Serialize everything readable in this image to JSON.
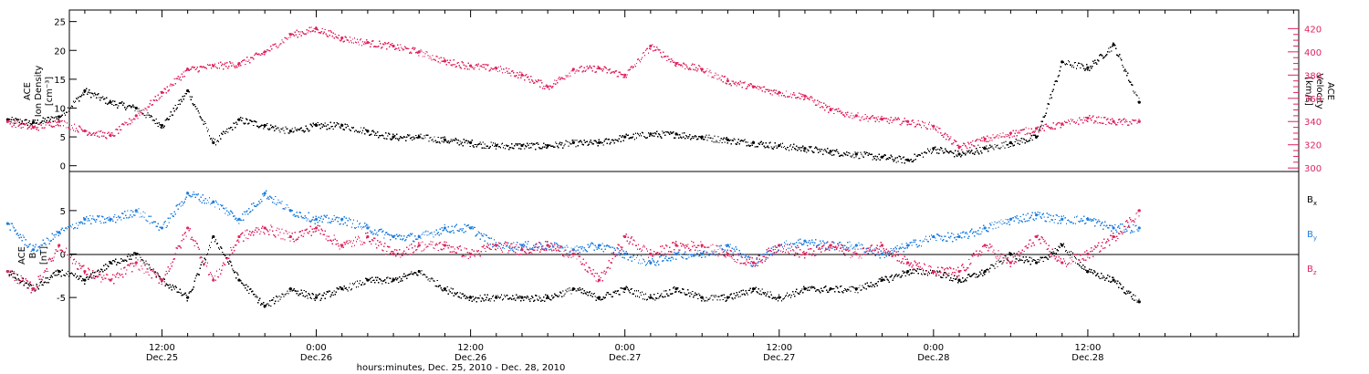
{
  "chart_data": [
    {
      "type": "scatter",
      "title": "",
      "xlabel": "hours:minutes, Dec. 25, 2010 - Dec. 28, 2010",
      "ylabel_left": [
        "ACE",
        "Ion Density",
        "[cm⁻³]"
      ],
      "ylabel_right": [
        "ACE",
        "Velocity",
        "[km/s]"
      ],
      "ylim_left": [
        -1,
        27
      ],
      "ylim_right": [
        297,
        436
      ],
      "left_ticks": [
        "0",
        "5",
        "10",
        "15",
        "20",
        "25"
      ],
      "right_ticks": [
        "300",
        "320",
        "340",
        "360",
        "380",
        "400",
        "420"
      ],
      "colors": {
        "density": "#000000",
        "velocity": "#e0245e"
      },
      "series": [
        {
          "name": "Ion Density",
          "axis": "left",
          "x_hours": [
            0,
            2,
            4,
            6,
            8,
            10,
            12,
            14,
            16,
            18,
            20,
            22,
            24,
            26,
            28,
            30,
            32,
            34,
            36,
            38,
            40,
            42,
            44,
            46,
            48,
            50,
            52,
            54,
            56,
            58,
            60,
            62,
            64,
            66,
            68,
            70,
            72,
            74,
            76,
            78,
            80,
            82,
            84,
            86,
            88
          ],
          "values": [
            8,
            7.5,
            8.5,
            13,
            11,
            10,
            7,
            13,
            4,
            8,
            7,
            6,
            7,
            7,
            6,
            5,
            5,
            4.5,
            4,
            3.5,
            3.5,
            3.5,
            4,
            4,
            5,
            5.5,
            5.5,
            5,
            4.5,
            4,
            3.5,
            3,
            2.5,
            2,
            1.5,
            1,
            3,
            2,
            3,
            4,
            5,
            18,
            17,
            21,
            11
          ]
        },
        {
          "name": "Velocity",
          "axis": "right",
          "x_hours": [
            0,
            2,
            4,
            6,
            8,
            10,
            12,
            14,
            16,
            18,
            20,
            22,
            24,
            26,
            28,
            30,
            32,
            34,
            36,
            38,
            40,
            42,
            44,
            46,
            48,
            50,
            52,
            54,
            56,
            58,
            60,
            62,
            64,
            66,
            68,
            70,
            72,
            74,
            76,
            78,
            80,
            82,
            84,
            86,
            88
          ],
          "values": [
            340,
            335,
            340,
            332,
            328,
            345,
            365,
            385,
            388,
            390,
            400,
            415,
            420,
            412,
            408,
            405,
            400,
            392,
            388,
            386,
            380,
            370,
            385,
            386,
            380,
            405,
            390,
            385,
            375,
            370,
            365,
            362,
            350,
            345,
            342,
            340,
            336,
            318,
            325,
            330,
            334,
            338,
            343,
            340,
            340
          ]
        }
      ]
    },
    {
      "type": "scatter",
      "title": "",
      "ylabel_left": [
        "ACE",
        "B",
        "[nT]"
      ],
      "ylim": [
        -9.5,
        9.5
      ],
      "left_ticks": [
        "-5",
        "0",
        "5"
      ],
      "colors": {
        "Bx": "#000000",
        "By": "#1f7fe0",
        "Bz": "#e0245e"
      },
      "legend": [
        {
          "label": "B",
          "sub": "x",
          "color": "#000000"
        },
        {
          "label": "B",
          "sub": "y",
          "color": "#1f7fe0"
        },
        {
          "label": "B",
          "sub": "z",
          "color": "#e0245e"
        }
      ],
      "series": [
        {
          "name": "Bx",
          "x_hours": [
            0,
            2,
            4,
            6,
            8,
            10,
            12,
            14,
            16,
            18,
            20,
            22,
            24,
            26,
            28,
            30,
            32,
            34,
            36,
            38,
            40,
            42,
            44,
            46,
            48,
            50,
            52,
            54,
            56,
            58,
            60,
            62,
            64,
            66,
            68,
            70,
            72,
            74,
            76,
            78,
            80,
            82,
            84,
            86,
            88
          ],
          "values": [
            -2,
            -4,
            -2,
            -3,
            -1,
            0,
            -3,
            -5,
            2,
            -3,
            -6,
            -4,
            -5,
            -4,
            -3,
            -3,
            -2,
            -4,
            -5,
            -5,
            -5,
            -5,
            -4,
            -5,
            -4,
            -5,
            -4,
            -5,
            -5,
            -4,
            -5,
            -4,
            -4,
            -4,
            -3,
            -2,
            -2,
            -3,
            -2,
            0,
            -1,
            1,
            -2,
            -3,
            -5.5
          ]
        },
        {
          "name": "By",
          "x_hours": [
            0,
            2,
            4,
            6,
            8,
            10,
            12,
            14,
            16,
            18,
            20,
            22,
            24,
            26,
            28,
            30,
            32,
            34,
            36,
            38,
            40,
            42,
            44,
            46,
            48,
            50,
            52,
            54,
            56,
            58,
            60,
            62,
            64,
            66,
            68,
            70,
            72,
            74,
            76,
            78,
            80,
            82,
            84,
            86,
            88
          ],
          "values": [
            3.5,
            0.5,
            2.5,
            4,
            4,
            5,
            3,
            7,
            6,
            4,
            7,
            5,
            4,
            4,
            3,
            2,
            2,
            3,
            3,
            1,
            1,
            1,
            0.5,
            1,
            0,
            -1,
            0,
            0,
            1,
            -1,
            1,
            1.5,
            1,
            1,
            0,
            1,
            2,
            2,
            3,
            4,
            4.5,
            4,
            4,
            3,
            3
          ]
        },
        {
          "name": "Bz",
          "x_hours": [
            0,
            2,
            4,
            6,
            8,
            10,
            12,
            14,
            16,
            18,
            20,
            22,
            24,
            26,
            28,
            30,
            32,
            34,
            36,
            38,
            40,
            42,
            44,
            46,
            48,
            50,
            52,
            54,
            56,
            58,
            60,
            62,
            64,
            66,
            68,
            70,
            72,
            74,
            76,
            78,
            80,
            82,
            84,
            86,
            88
          ],
          "values": [
            -2,
            -4,
            1,
            -2,
            -3,
            -1,
            -3,
            3,
            -3,
            2,
            3,
            2,
            3,
            1,
            2,
            0,
            1,
            1,
            0,
            1,
            0.5,
            1,
            0,
            -3,
            2,
            0,
            1,
            1,
            0,
            -1,
            1,
            0,
            1,
            0,
            1,
            -1,
            -2,
            -2,
            1,
            -1,
            2,
            -1,
            0,
            2,
            5
          ]
        }
      ]
    }
  ],
  "x_axis": {
    "ticks": [
      {
        "time": "12:00",
        "date": "Dec.25"
      },
      {
        "time": "0:00",
        "date": "Dec.26"
      },
      {
        "time": "12:00",
        "date": "Dec.26"
      },
      {
        "time": "0:00",
        "date": "Dec.27"
      },
      {
        "time": "12:00",
        "date": "Dec.27"
      },
      {
        "time": "0:00",
        "date": "Dec.28"
      },
      {
        "time": "12:00",
        "date": "Dec.28"
      }
    ],
    "tick_hours": [
      12,
      24,
      36,
      48,
      60,
      72,
      84
    ],
    "range_hours": [
      4.8,
      100.4
    ],
    "label": "hours:minutes, Dec. 25, 2010 - Dec. 28, 2010"
  }
}
